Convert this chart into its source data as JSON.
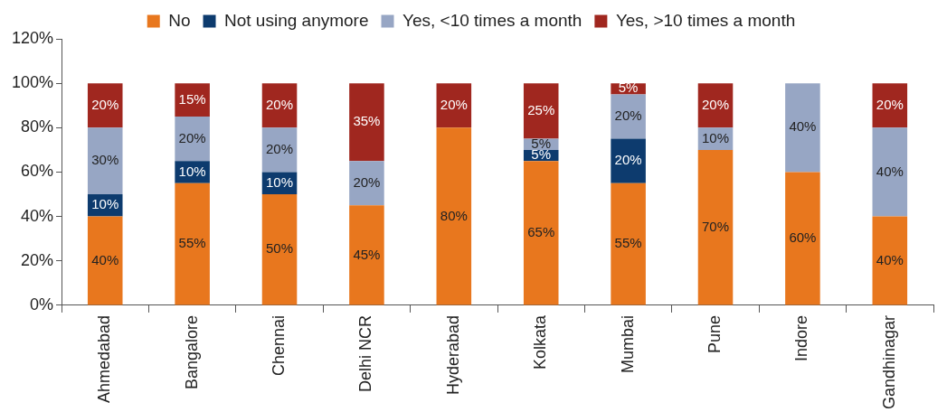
{
  "chart_data": {
    "type": "bar",
    "stacked": true,
    "legend": "top",
    "grid": false,
    "categories": [
      "Ahmedabad",
      "Bangalore",
      "Chennai",
      "Delhi NCR",
      "Hyderabad",
      "Kolkata",
      "Mumbai",
      "Pune",
      "Indore",
      "Gandhinagar"
    ],
    "ylim": [
      0,
      120
    ],
    "yticks": [
      {
        "value": 0,
        "label": "0%"
      },
      {
        "value": 20,
        "label": "20%"
      },
      {
        "value": 40,
        "label": "40%"
      },
      {
        "value": 60,
        "label": "60%"
      },
      {
        "value": 80,
        "label": "80%"
      },
      {
        "value": 100,
        "label": "100%"
      },
      {
        "value": 120,
        "label": "120%"
      }
    ],
    "series": [
      {
        "name": "No",
        "color": "#e8771e",
        "values": [
          40,
          55,
          50,
          45,
          80,
          65,
          55,
          70,
          60,
          40
        ],
        "value_labels": [
          "40%",
          "55%",
          "50%",
          "45%",
          "80%",
          "65%",
          "55%",
          "70%",
          "60%",
          "40%"
        ]
      },
      {
        "name": "Not using anymore",
        "color": "#0d3b6e",
        "values": [
          10,
          10,
          10,
          null,
          null,
          5,
          20,
          null,
          null,
          null
        ],
        "value_labels": [
          "10%",
          "10%",
          "10%",
          null,
          null,
          "5%",
          "20%",
          null,
          null,
          null
        ]
      },
      {
        "name": "Yes, <10 times a month",
        "color": "#97a6c4",
        "values": [
          30,
          20,
          20,
          20,
          null,
          5,
          20,
          10,
          40,
          40
        ],
        "value_labels": [
          "30%",
          "20%",
          "20%",
          "20%",
          null,
          "5%",
          "20%",
          "10%",
          "40%",
          "40%"
        ]
      },
      {
        "name": "Yes, >10 times a month",
        "color": "#a0271f",
        "values": [
          20,
          15,
          20,
          35,
          20,
          25,
          5,
          20,
          null,
          20
        ],
        "value_labels": [
          "20%",
          "15%",
          "20%",
          "35%",
          "20%",
          "25%",
          "5%",
          "20%",
          null,
          "20%"
        ]
      }
    ]
  }
}
